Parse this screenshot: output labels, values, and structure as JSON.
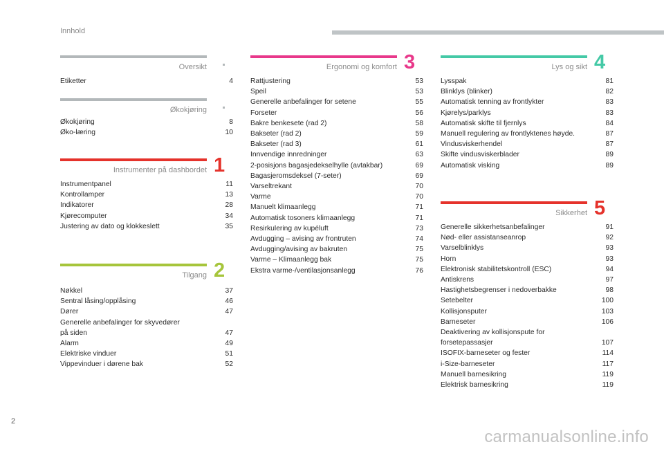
{
  "header": {
    "title": "Innhold"
  },
  "page_number": "2",
  "watermark": "carmanualsonline.info",
  "sections": {
    "oversikt": {
      "title": "Oversikt",
      "number": "",
      "color": "#b3b8ba",
      "entries": [
        {
          "label": "Etiketter",
          "page": "4"
        }
      ]
    },
    "okokjoring": {
      "title": "Økokjøring",
      "number": "",
      "color": "#b3b8ba",
      "entries": [
        {
          "label": "Økokjøring",
          "page": "8"
        },
        {
          "label": "Øko-læring",
          "page": "10"
        }
      ]
    },
    "instrumenter": {
      "title": "Instrumenter på dashbordet",
      "number": "1",
      "color": "#e5322b",
      "entries": [
        {
          "label": "Instrumentpanel",
          "page": "11"
        },
        {
          "label": "Kontrollamper",
          "page": "13"
        },
        {
          "label": "Indikatorer",
          "page": "28"
        },
        {
          "label": "Kjørecomputer",
          "page": "34"
        },
        {
          "label": "Justering av dato og klokkeslett",
          "page": "35"
        }
      ]
    },
    "tilgang": {
      "title": "Tilgang",
      "number": "2",
      "color": "#a6c53b",
      "entries": [
        {
          "label": "Nøkkel",
          "page": "37"
        },
        {
          "label": "Sentral låsing/opplåsing",
          "page": "46"
        },
        {
          "label": "Dører",
          "page": "47"
        },
        {
          "label": "Generelle anbefalinger for skyvedører\npå siden",
          "page": "47"
        },
        {
          "label": "Alarm",
          "page": "49"
        },
        {
          "label": "Elektriske vinduer",
          "page": "51"
        },
        {
          "label": "Vippevinduer i dørene bak",
          "page": "52"
        }
      ]
    },
    "ergonomi": {
      "title": "Ergonomi og komfort",
      "number": "3",
      "color": "#e8388a",
      "entries": [
        {
          "label": "Rattjustering",
          "page": "53"
        },
        {
          "label": "Speil",
          "page": "53"
        },
        {
          "label": "Generelle anbefalinger for setene",
          "page": "55"
        },
        {
          "label": "Forseter",
          "page": "56"
        },
        {
          "label": "Bakre benkesete (rad 2)",
          "page": "58"
        },
        {
          "label": "Bakseter (rad 2)",
          "page": "59"
        },
        {
          "label": "Bakseter (rad 3)",
          "page": "61"
        },
        {
          "label": "Innvendige innredninger",
          "page": "63"
        },
        {
          "label": "2-posisjons bagasjedekselhylle (avtakbar)",
          "page": "69"
        },
        {
          "label": "Bagasjeromsdeksel (7-seter)",
          "page": "69"
        },
        {
          "label": "Varseltrekant",
          "page": "70"
        },
        {
          "label": "Varme",
          "page": "70"
        },
        {
          "label": "Manuelt klimaanlegg",
          "page": "71"
        },
        {
          "label": "Automatisk tosoners klimaanlegg",
          "page": "71"
        },
        {
          "label": "Resirkulering av kupéluft",
          "page": "73"
        },
        {
          "label": "Avdugging – avising av frontruten",
          "page": "74"
        },
        {
          "label": "Avdugging/avising av bakruten",
          "page": "75"
        },
        {
          "label": "Varme – Klimaanlegg bak",
          "page": "75"
        },
        {
          "label": "Ekstra varme-/ventilasjonsanlegg",
          "page": "76"
        }
      ]
    },
    "lys": {
      "title": "Lys og sikt",
      "number": "4",
      "color": "#44c9a6",
      "entries": [
        {
          "label": "Lysspak",
          "page": "81"
        },
        {
          "label": "Blinklys (blinker)",
          "page": "82"
        },
        {
          "label": "Automatisk tenning av frontlykter",
          "page": "83"
        },
        {
          "label": "Kjørelys/parklys",
          "page": "83"
        },
        {
          "label": "Automatisk skifte til fjernlys",
          "page": "84"
        },
        {
          "label": "Manuell regulering av frontlyktenes høyde.",
          "page": "87"
        },
        {
          "label": "Vindusviskerhendel",
          "page": "87"
        },
        {
          "label": "Skifte vindusviskerblader",
          "page": "89"
        },
        {
          "label": "Automatisk visking",
          "page": "89"
        }
      ]
    },
    "sikkerhet": {
      "title": "Sikkerhet",
      "number": "5",
      "color": "#e5322b",
      "entries": [
        {
          "label": "Generelle sikkerhetsanbefalinger",
          "page": "91"
        },
        {
          "label": "Nød- eller assistanseanrop",
          "page": "92"
        },
        {
          "label": "Varselblinklys",
          "page": "93"
        },
        {
          "label": "Horn",
          "page": "93"
        },
        {
          "label": "Elektronisk stabilitetskontroll (ESC)",
          "page": "94"
        },
        {
          "label": "Antiskrens",
          "page": "97"
        },
        {
          "label": "Hastighetsbegrenser i nedoverbakke",
          "page": "98"
        },
        {
          "label": "Setebelter",
          "page": "100"
        },
        {
          "label": "Kollisjonsputer",
          "page": "103"
        },
        {
          "label": "Barneseter",
          "page": "106"
        },
        {
          "label": "Deaktivering av kollisjonspute for\nforsetepassasjer",
          "page": "107"
        },
        {
          "label": "ISOFIX-barneseter og fester",
          "page": "114"
        },
        {
          "label": "i-Size-barneseter",
          "page": "117"
        },
        {
          "label": "Manuell barnesikring",
          "page": "119"
        },
        {
          "label": "Elektrisk barnesikring",
          "page": "119"
        }
      ]
    }
  }
}
